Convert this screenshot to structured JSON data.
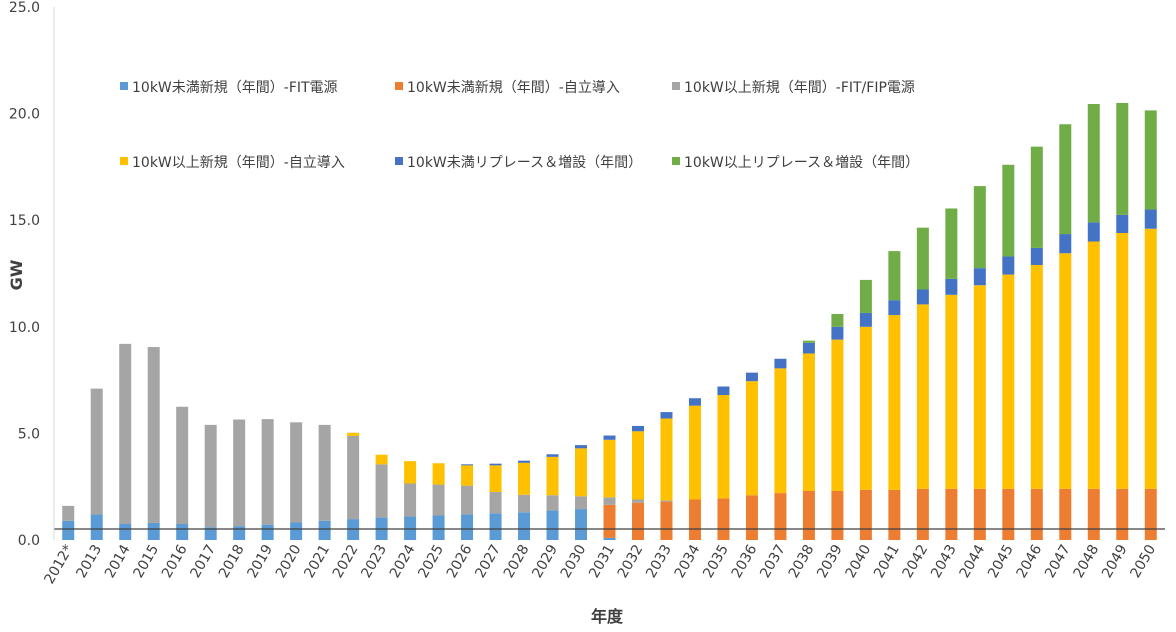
{
  "chart_data": {
    "type": "bar",
    "stacked": true,
    "xlabel": "年度",
    "ylabel": "GW",
    "ylim": [
      0,
      25
    ],
    "ytick_labels": [
      "0.0",
      "5.0",
      "10.0",
      "15.0",
      "20.0",
      "25.0"
    ],
    "grid": false,
    "legend_placement": "top-left",
    "categories": [
      "2012*",
      "2013",
      "2014",
      "2015",
      "2016",
      "2017",
      "2018",
      "2019",
      "2020",
      "2021",
      "2022",
      "2023",
      "2024",
      "2025",
      "2026",
      "2027",
      "2028",
      "2029",
      "2030",
      "2031",
      "2032",
      "2033",
      "2034",
      "2035",
      "2036",
      "2037",
      "2038",
      "2039",
      "2040",
      "2041",
      "2042",
      "2043",
      "2044",
      "2045",
      "2046",
      "2047",
      "2048",
      "2049",
      "2050"
    ],
    "series": [
      {
        "name": "10kW未満新規（年間）-FIT電源",
        "color": "#5b9bd5",
        "values": [
          0.9,
          1.2,
          0.75,
          0.8,
          0.75,
          0.6,
          0.65,
          0.72,
          0.82,
          0.9,
          0.98,
          1.05,
          1.1,
          1.15,
          1.2,
          1.25,
          1.3,
          1.38,
          1.45,
          0.1,
          0,
          0,
          0,
          0,
          0,
          0,
          0,
          0,
          0,
          0,
          0,
          0,
          0,
          0,
          0,
          0,
          0,
          0,
          0
        ]
      },
      {
        "name": "10kW未満新規（年間）-自立導入",
        "color": "#ed7d31",
        "values": [
          0,
          0,
          0,
          0,
          0,
          0,
          0,
          0,
          0,
          0,
          0,
          0,
          0,
          0,
          0,
          0,
          0,
          0,
          0,
          1.55,
          1.75,
          1.8,
          1.9,
          1.95,
          2.1,
          2.2,
          2.3,
          2.3,
          2.35,
          2.35,
          2.4,
          2.4,
          2.4,
          2.4,
          2.4,
          2.4,
          2.4,
          2.4,
          2.4
        ]
      },
      {
        "name": "10kW以上新規（年間）-FIT/FIP電源",
        "color": "#a5a5a5",
        "values": [
          0.7,
          5.9,
          8.45,
          8.25,
          5.5,
          4.8,
          5.0,
          4.95,
          4.7,
          4.5,
          3.9,
          2.5,
          1.55,
          1.45,
          1.35,
          1.0,
          0.82,
          0.72,
          0.6,
          0.35,
          0.15,
          0.05,
          0,
          0,
          0,
          0,
          0,
          0,
          0,
          0,
          0,
          0,
          0,
          0,
          0,
          0,
          0,
          0,
          0
        ]
      },
      {
        "name": "10kW以上新規（年間）-自立導入",
        "color": "#ffc000",
        "values": [
          0,
          0,
          0,
          0,
          0,
          0,
          0,
          0,
          0,
          0,
          0.15,
          0.45,
          1.05,
          1.0,
          0.95,
          1.25,
          1.5,
          1.8,
          2.25,
          2.7,
          3.2,
          3.85,
          4.4,
          4.85,
          5.35,
          5.85,
          6.45,
          7.1,
          7.65,
          8.2,
          8.65,
          9.1,
          9.55,
          10.05,
          10.5,
          11.05,
          11.6,
          12.0,
          12.2
        ]
      },
      {
        "name": "10kW未満リプレース＆増設（年間）",
        "color": "#4472c4",
        "values": [
          0,
          0,
          0,
          0,
          0,
          0,
          0,
          0,
          0,
          0,
          0,
          0,
          0,
          0,
          0.05,
          0.08,
          0.1,
          0.12,
          0.15,
          0.2,
          0.25,
          0.3,
          0.35,
          0.4,
          0.4,
          0.45,
          0.5,
          0.6,
          0.65,
          0.7,
          0.7,
          0.75,
          0.8,
          0.85,
          0.8,
          0.9,
          0.9,
          0.85,
          0.9
        ]
      },
      {
        "name": "10kW以上リプレース＆増設（年間）",
        "color": "#70ad47",
        "values": [
          0,
          0,
          0,
          0,
          0,
          0,
          0,
          0,
          0,
          0,
          0,
          0,
          0,
          0,
          0,
          0,
          0,
          0,
          0,
          0,
          0,
          0,
          0,
          0,
          0,
          0,
          0.1,
          0.6,
          1.55,
          2.3,
          2.9,
          3.3,
          3.85,
          4.3,
          4.75,
          5.15,
          5.55,
          5.25,
          4.65
        ]
      }
    ]
  }
}
